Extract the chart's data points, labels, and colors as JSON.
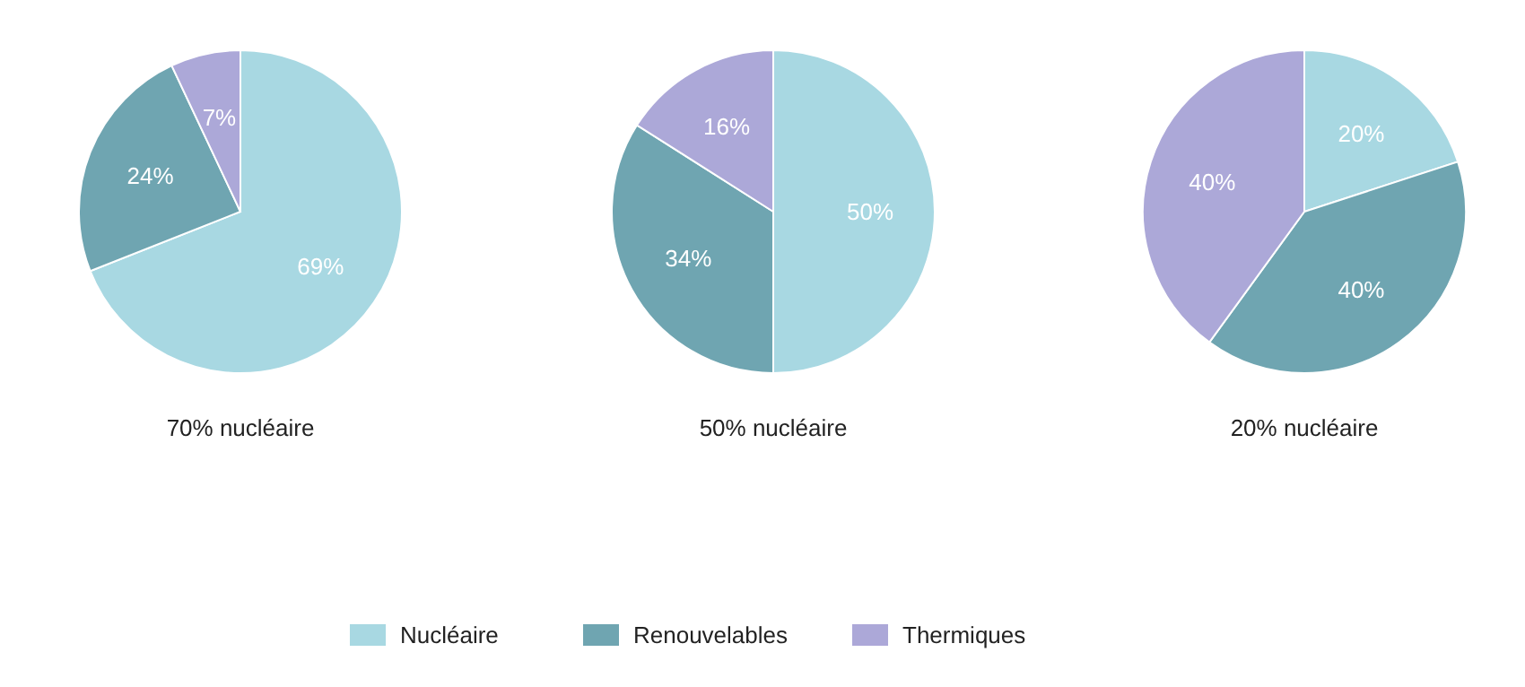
{
  "chart_data": [
    {
      "type": "pie",
      "title": "70% nucléaire",
      "categories": [
        "Nucléaire",
        "Renouvelables",
        "Thermiques"
      ],
      "values": [
        69,
        24,
        7
      ],
      "colors": [
        "#a8d8e2",
        "#6fa5b1",
        "#aca8d8"
      ],
      "value_labels": [
        "69%",
        "24%",
        "7%"
      ],
      "legend": "bottom"
    },
    {
      "type": "pie",
      "title": "50% nucléaire",
      "categories": [
        null,
        null,
        null
      ],
      "values": [
        50,
        34,
        16
      ],
      "colors": [
        "#a8d8e2",
        "#6fa5b1",
        "#aca8d8"
      ],
      "value_labels": [
        "50%",
        "34%",
        "16%"
      ]
    },
    {
      "type": "pie",
      "title": "20% nucléaire",
      "categories": [
        null,
        null,
        null
      ],
      "values": [
        20,
        40,
        40
      ],
      "colors": [
        "#a8d8e2",
        "#6fa5b1",
        "#aca8d8"
      ],
      "value_labels": [
        "20%",
        "40%",
        "40%"
      ]
    }
  ]
}
